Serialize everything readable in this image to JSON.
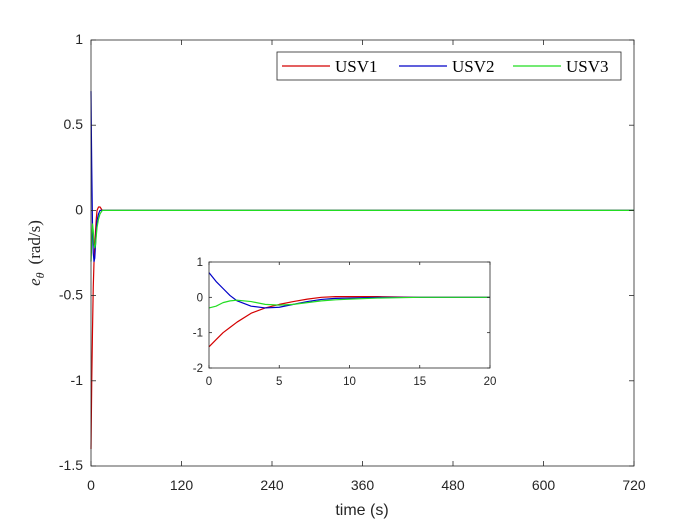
{
  "chart_data": [
    {
      "type": "line",
      "xlabel": "time (s)",
      "ylabel": "e",
      "ylabel_subscript": "θ",
      "ylabel_unit": "(rad/s)",
      "xlim": [
        0,
        720
      ],
      "ylim": [
        -1.5,
        1
      ],
      "xticks": [
        "0",
        "120",
        "240",
        "360",
        "480",
        "600",
        "720"
      ],
      "yticks": [
        "-1.5",
        "-1",
        "-0.5",
        "0",
        "0.5",
        "1"
      ],
      "xtick_values": [
        0,
        120,
        240,
        360,
        480,
        600,
        720
      ],
      "ytick_values": [
        -1.5,
        -1,
        -0.5,
        0,
        0.5,
        1
      ],
      "grid": false,
      "legend_position": "top-right",
      "legend": [
        "USV1",
        "USV2",
        "USV3"
      ],
      "colors": [
        "#d40000",
        "#0000c8",
        "#22dd22"
      ],
      "series": [
        {
          "name": "USV1",
          "x": [
            0,
            0.5,
            1,
            2,
            3,
            4,
            5,
            6,
            7,
            8,
            10,
            12,
            15,
            20,
            720
          ],
          "y": [
            -1.4,
            -1.2,
            -1.0,
            -0.7,
            -0.45,
            -0.3,
            -0.2,
            -0.12,
            -0.05,
            0.0,
            0.02,
            0.02,
            0.0,
            0.0,
            0.0
          ]
        },
        {
          "name": "USV2",
          "x": [
            0,
            0.5,
            1,
            2,
            3,
            4,
            5,
            6,
            7,
            8,
            10,
            12,
            15,
            20,
            720
          ],
          "y": [
            0.7,
            0.45,
            0.25,
            -0.1,
            -0.25,
            -0.3,
            -0.28,
            -0.2,
            -0.12,
            -0.06,
            -0.02,
            0.0,
            0.0,
            0.0,
            0.0
          ]
        },
        {
          "name": "USV3",
          "x": [
            0,
            0.5,
            1,
            2,
            3,
            4,
            5,
            6,
            7,
            8,
            10,
            12,
            15,
            20,
            720
          ],
          "y": [
            -0.3,
            -0.25,
            -0.15,
            -0.08,
            -0.12,
            -0.2,
            -0.22,
            -0.2,
            -0.15,
            -0.1,
            -0.05,
            -0.02,
            0.0,
            0.0,
            0.0
          ]
        }
      ]
    },
    {
      "type": "line",
      "role": "inset",
      "xlim": [
        0,
        20
      ],
      "ylim": [
        -2,
        1
      ],
      "xticks": [
        "0",
        "5",
        "10",
        "15",
        "20"
      ],
      "yticks": [
        "-2",
        "-1",
        "0",
        "1"
      ],
      "xtick_values": [
        0,
        5,
        10,
        15,
        20
      ],
      "ytick_values": [
        -2,
        -1,
        0,
        1
      ],
      "colors": [
        "#d40000",
        "#0000c8",
        "#22dd22"
      ],
      "series": [
        {
          "name": "USV1",
          "x": [
            0,
            0.5,
            1,
            1.5,
            2,
            3,
            4,
            5,
            6,
            7,
            8,
            9,
            10,
            12,
            15,
            20
          ],
          "y": [
            -1.4,
            -1.2,
            -1.0,
            -0.85,
            -0.7,
            -0.45,
            -0.3,
            -0.2,
            -0.12,
            -0.05,
            0.0,
            0.02,
            0.02,
            0.02,
            0.0,
            0.0
          ]
        },
        {
          "name": "USV2",
          "x": [
            0,
            0.5,
            1,
            1.5,
            2,
            3,
            4,
            5,
            6,
            7,
            8,
            9,
            10,
            12,
            15,
            20
          ],
          "y": [
            0.7,
            0.45,
            0.25,
            0.05,
            -0.1,
            -0.25,
            -0.3,
            -0.28,
            -0.2,
            -0.12,
            -0.06,
            -0.03,
            -0.02,
            0.0,
            0.0,
            0.0
          ]
        },
        {
          "name": "USV3",
          "x": [
            0,
            0.5,
            1,
            1.5,
            2,
            3,
            4,
            5,
            6,
            7,
            8,
            9,
            10,
            12,
            15,
            20
          ],
          "y": [
            -0.3,
            -0.25,
            -0.15,
            -0.1,
            -0.08,
            -0.12,
            -0.2,
            -0.22,
            -0.2,
            -0.15,
            -0.1,
            -0.07,
            -0.05,
            -0.02,
            0.0,
            0.0
          ]
        }
      ]
    }
  ]
}
